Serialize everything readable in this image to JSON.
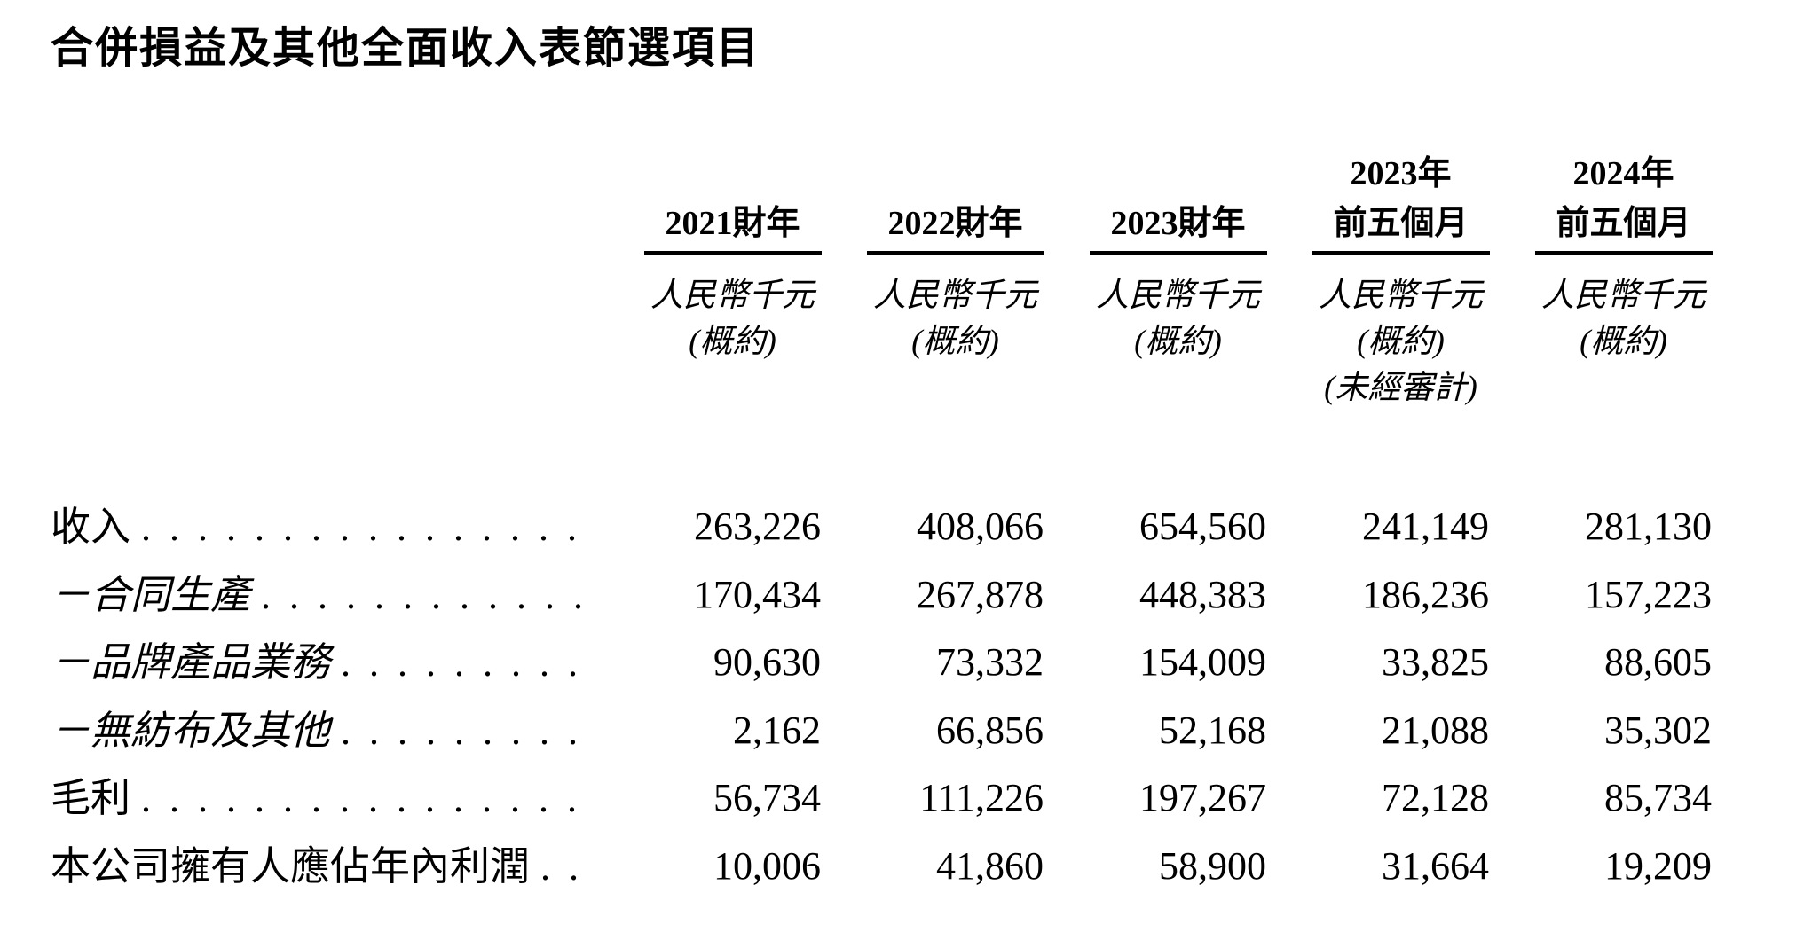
{
  "page": {
    "title": "合併損益及其他全面收入表節選項目"
  },
  "table": {
    "columns": [
      {
        "year_line1": "",
        "year_line2": "2021財年",
        "unit": "人民幣千元",
        "note": "(概約)",
        "audit_note": ""
      },
      {
        "year_line1": "",
        "year_line2": "2022財年",
        "unit": "人民幣千元",
        "note": "(概約)",
        "audit_note": ""
      },
      {
        "year_line1": "",
        "year_line2": "2023財年",
        "unit": "人民幣千元",
        "note": "(概約)",
        "audit_note": ""
      },
      {
        "year_line1": "2023年",
        "year_line2": "前五個月",
        "unit": "人民幣千元",
        "note": "(概約)",
        "audit_note": "(未經審計)"
      },
      {
        "year_line1": "2024年",
        "year_line2": "前五個月",
        "unit": "人民幣千元",
        "note": "(概約)",
        "audit_note": ""
      }
    ],
    "rows": [
      {
        "label": "收入",
        "style": "normal",
        "values": [
          "263,226",
          "408,066",
          "654,560",
          "241,149",
          "281,130"
        ]
      },
      {
        "label": "－合同生產",
        "style": "sub",
        "values": [
          "170,434",
          "267,878",
          "448,383",
          "186,236",
          "157,223"
        ]
      },
      {
        "label": "－品牌產品業務",
        "style": "sub",
        "values": [
          "90,630",
          "73,332",
          "154,009",
          "33,825",
          "88,605"
        ]
      },
      {
        "label": "－無紡布及其他",
        "style": "sub",
        "values": [
          "2,162",
          "66,856",
          "52,168",
          "21,088",
          "35,302"
        ]
      },
      {
        "label": "毛利",
        "style": "normal",
        "values": [
          "56,734",
          "111,226",
          "197,267",
          "72,128",
          "85,734"
        ]
      },
      {
        "label": "本公司擁有人應佔年內利潤",
        "style": "normal",
        "values": [
          "10,006",
          "41,860",
          "58,900",
          "31,664",
          "19,209"
        ]
      }
    ]
  }
}
